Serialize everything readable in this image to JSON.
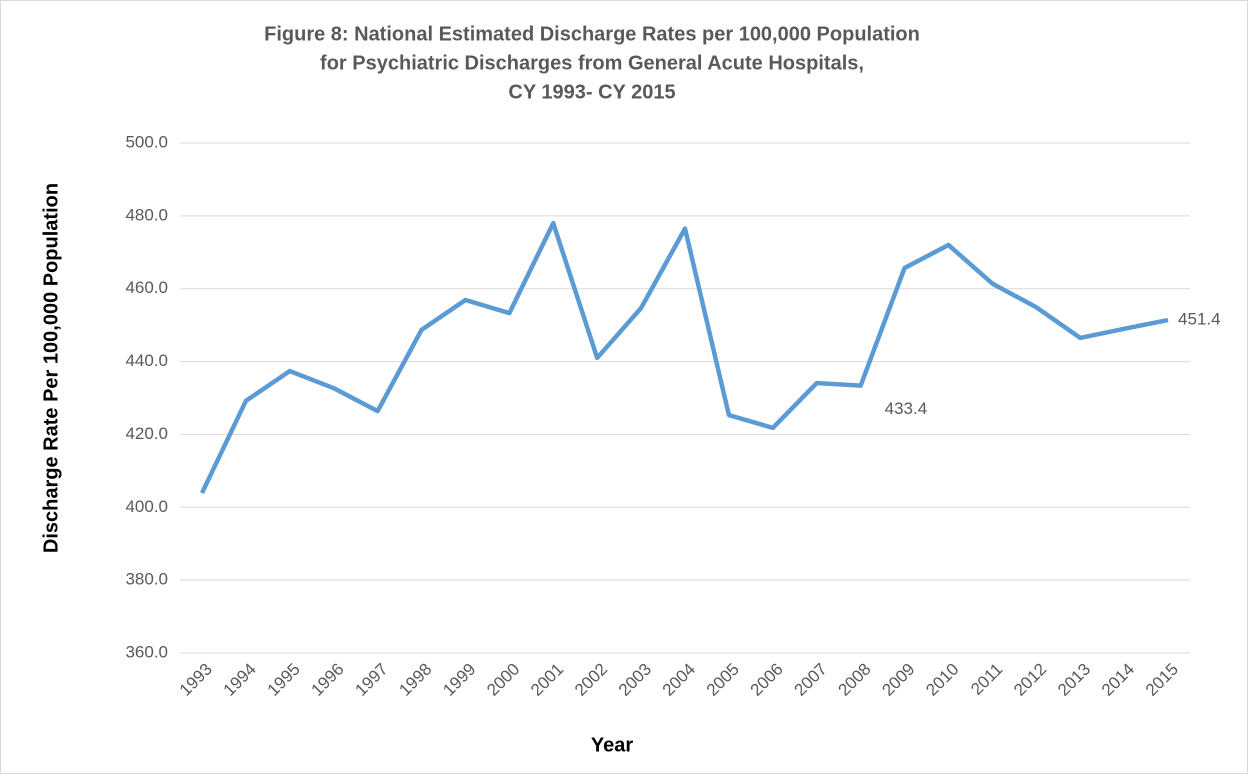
{
  "chart_data": {
    "type": "line",
    "title": [
      "Figure 8: National  Estimated Discharge Rates per 100,000 Population",
      "for Psychiatric Discharges from General Acute Hospitals,",
      "CY 1993- CY 2015"
    ],
    "x_label": "Year",
    "y_label": "Discharge Rate Per 100,000 Population",
    "categories": [
      "1993",
      "1994",
      "1995",
      "1996",
      "1997",
      "1998",
      "1999",
      "2000",
      "2001",
      "2002",
      "2003",
      "2004",
      "2005",
      "2006",
      "2007",
      "2008",
      "2009",
      "2010",
      "2011",
      "2012",
      "2013",
      "2014",
      "2015"
    ],
    "series": [
      {
        "name": "Discharge Rate",
        "color": "#5b9bd5",
        "values": [
          403.9,
          429.2,
          437.4,
          432.7,
          426.4,
          448.7,
          456.9,
          453.3,
          478.0,
          441.0,
          454.7,
          476.5,
          425.3,
          421.8,
          434.1,
          433.4,
          465.7,
          472.0,
          461.4,
          454.9,
          446.5,
          449.0,
          451.4
        ],
        "value_labels": [
          null,
          null,
          null,
          null,
          null,
          null,
          null,
          null,
          null,
          null,
          null,
          null,
          null,
          null,
          null,
          "433.4",
          null,
          null,
          null,
          null,
          null,
          null,
          "451.4"
        ]
      }
    ],
    "ylim": [
      360,
      500
    ],
    "yticks": [
      {
        "value": 360,
        "label": "360.0"
      },
      {
        "value": 380,
        "label": "380.0"
      },
      {
        "value": 400,
        "label": "400.0"
      },
      {
        "value": 420,
        "label": "420.0"
      },
      {
        "value": 440,
        "label": "440.0"
      },
      {
        "value": 460,
        "label": "460.0"
      },
      {
        "value": 480,
        "label": "480.0"
      },
      {
        "value": 500,
        "label": "500.0"
      }
    ],
    "grid": true
  }
}
